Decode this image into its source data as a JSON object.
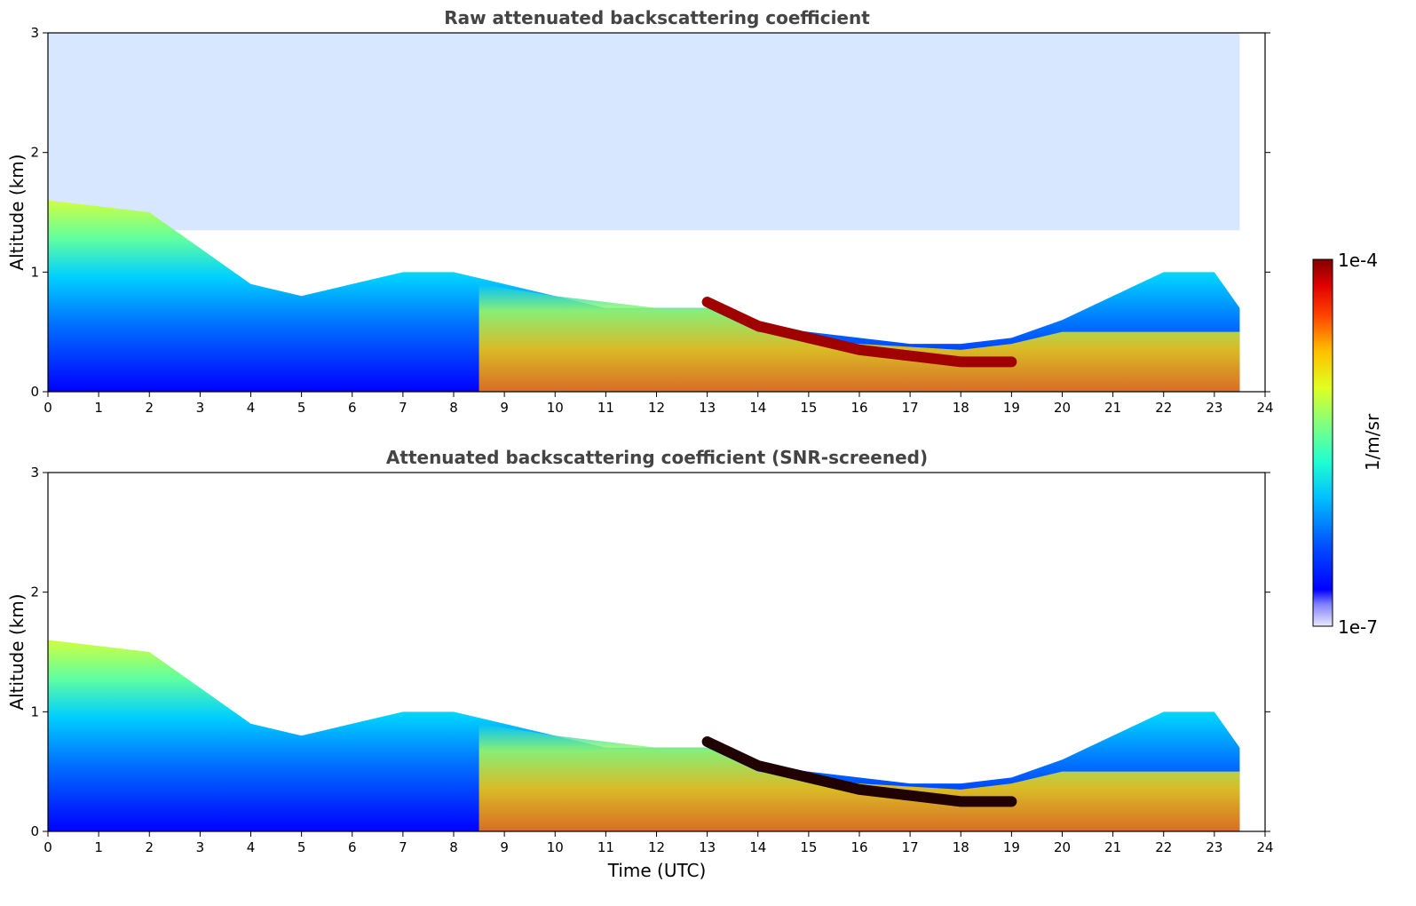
{
  "chart_data": [
    {
      "type": "heatmap",
      "title": "Raw attenuated backscattering coefficient",
      "xlabel": "",
      "ylabel": "Altitude (km)",
      "xlim": [
        0,
        24
      ],
      "ylim": [
        0,
        3
      ],
      "xticks": [
        0,
        1,
        2,
        3,
        4,
        5,
        6,
        7,
        8,
        9,
        10,
        11,
        12,
        13,
        14,
        15,
        16,
        17,
        18,
        19,
        20,
        21,
        22,
        23,
        24
      ],
      "yticks": [
        0,
        1,
        2,
        3
      ],
      "screened": false,
      "data_coverage_hours": [
        0,
        23.5
      ],
      "features": [
        {
          "name": "mixed layer top",
          "time_utc": [
            0,
            2,
            3,
            4,
            5,
            6,
            7,
            8,
            9,
            10,
            11,
            12,
            13,
            14,
            15,
            16,
            17,
            18,
            19,
            20,
            21,
            22,
            23,
            23.5
          ],
          "altitude_km": [
            1.6,
            1.5,
            1.2,
            0.9,
            0.8,
            0.9,
            1.0,
            1.0,
            0.9,
            0.8,
            0.7,
            0.7,
            0.7,
            0.55,
            0.5,
            0.45,
            0.4,
            0.4,
            0.45,
            0.6,
            0.8,
            1.0,
            1.0,
            0.7
          ]
        },
        {
          "name": "cloud base layer",
          "time_utc": [
            13,
            14,
            15,
            16,
            17,
            18,
            19
          ],
          "altitude_km": [
            0.75,
            0.55,
            0.45,
            0.35,
            0.3,
            0.25,
            0.25
          ]
        }
      ]
    },
    {
      "type": "heatmap",
      "title": "Attenuated backscattering coefficient (SNR-screened)",
      "xlabel": "Time (UTC)",
      "ylabel": "Altitude (km)",
      "xlim": [
        0,
        24
      ],
      "ylim": [
        0,
        3
      ],
      "xticks": [
        0,
        1,
        2,
        3,
        4,
        5,
        6,
        7,
        8,
        9,
        10,
        11,
        12,
        13,
        14,
        15,
        16,
        17,
        18,
        19,
        20,
        21,
        22,
        23,
        24
      ],
      "yticks": [
        0,
        1,
        2,
        3
      ],
      "screened": true,
      "data_coverage_hours": [
        0,
        23.5
      ]
    }
  ],
  "colorbar": {
    "label": "1/m/sr",
    "max_label": "1e-4",
    "min_label": "1e-7",
    "range": [
      1e-07,
      0.0001
    ],
    "colormap": "jet",
    "colors": [
      "#e8e8ff",
      "#a0a0ff",
      "#0000ff",
      "#0060ff",
      "#00c0ff",
      "#40ffc0",
      "#c0ff40",
      "#ffd000",
      "#ff6000",
      "#e00000",
      "#800000"
    ]
  }
}
